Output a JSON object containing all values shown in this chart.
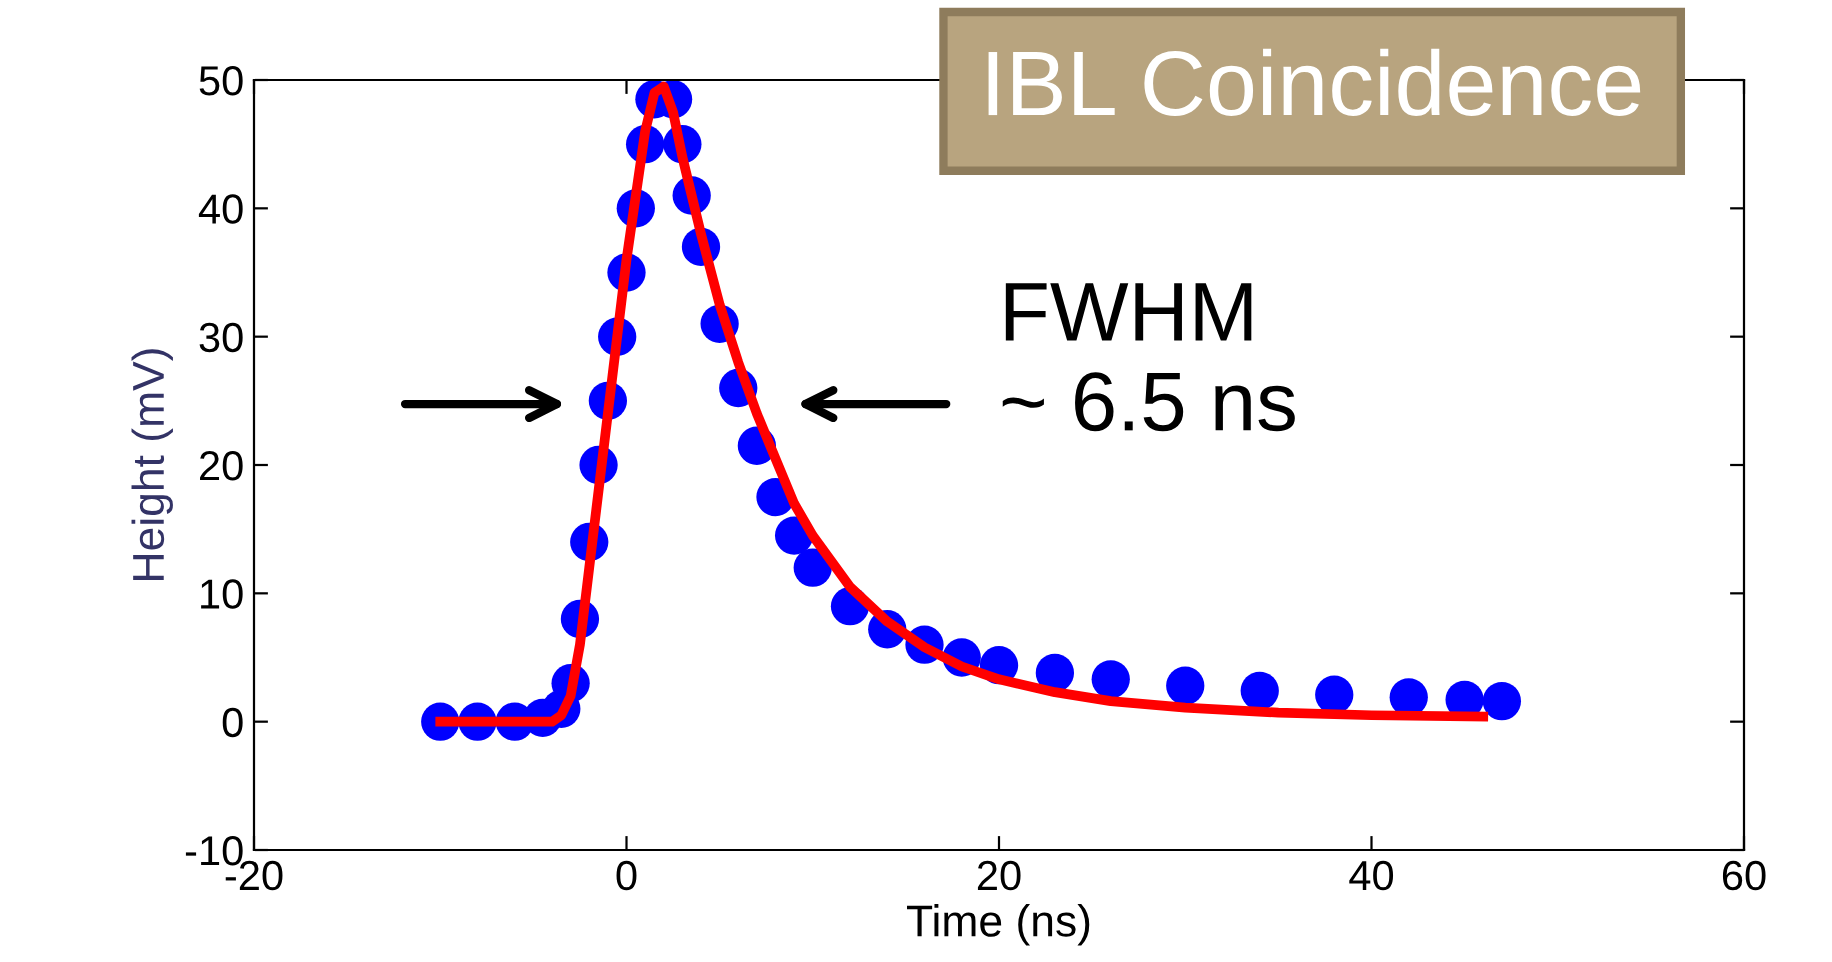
{
  "chart_data": {
    "type": "scatter",
    "title": "IBL Coincidence",
    "xlabel": "Time (ns)",
    "ylabel": "Height (mV)",
    "xlim": [
      -20,
      60
    ],
    "xticks": [
      -20,
      0,
      20,
      40,
      60
    ],
    "ylim": [
      -10,
      50
    ],
    "yticks": [
      -10,
      0,
      10,
      20,
      30,
      40,
      50
    ],
    "grid": false,
    "legend": false,
    "annotations": [
      "FWHM\n~ 6.5 ns"
    ],
    "series": [
      {
        "marker": "circle",
        "color": "#0000ff",
        "x": [
          -10,
          -8,
          -6,
          -4.5,
          -3.5,
          -3,
          -2.5,
          -2,
          -1.5,
          -1,
          -0.5,
          0,
          0.5,
          1,
          1.5,
          2.5,
          3,
          3.5,
          4,
          5,
          6,
          7,
          8,
          9,
          10,
          12,
          14,
          16,
          18,
          20,
          23,
          26,
          30,
          34,
          38,
          42,
          45,
          47
        ],
        "values": [
          0,
          0,
          0,
          0.3,
          1,
          3,
          8,
          14,
          20,
          25,
          30,
          35,
          40,
          45,
          48.5,
          48.5,
          45,
          41,
          37,
          31,
          26,
          21.5,
          17.5,
          14.5,
          12,
          9,
          7.2,
          6,
          5,
          4.4,
          3.8,
          3.3,
          2.8,
          2.4,
          2.1,
          1.9,
          1.7,
          1.6
        ]
      },
      {
        "type": "line",
        "marker": "none",
        "line_style": "solid",
        "color": "#ff0000",
        "x": [
          -10,
          -4,
          -3.5,
          -3,
          -2.5,
          -2,
          -1.5,
          -1,
          -0.5,
          0,
          0.5,
          1,
          1.5,
          2,
          2.5,
          3,
          4,
          5,
          6,
          7,
          8,
          9,
          10,
          12,
          14,
          16,
          18,
          20,
          23,
          26,
          30,
          35,
          40,
          46
        ],
        "values": [
          0,
          0,
          0.5,
          2,
          6,
          12,
          18,
          24,
          30,
          36,
          41,
          46,
          49,
          49.5,
          47.5,
          44,
          38,
          32.5,
          28,
          24,
          20.5,
          17,
          14.5,
          10.5,
          7.8,
          5.8,
          4.3,
          3.3,
          2.3,
          1.6,
          1.1,
          0.7,
          0.5,
          0.4
        ]
      }
    ]
  }
}
